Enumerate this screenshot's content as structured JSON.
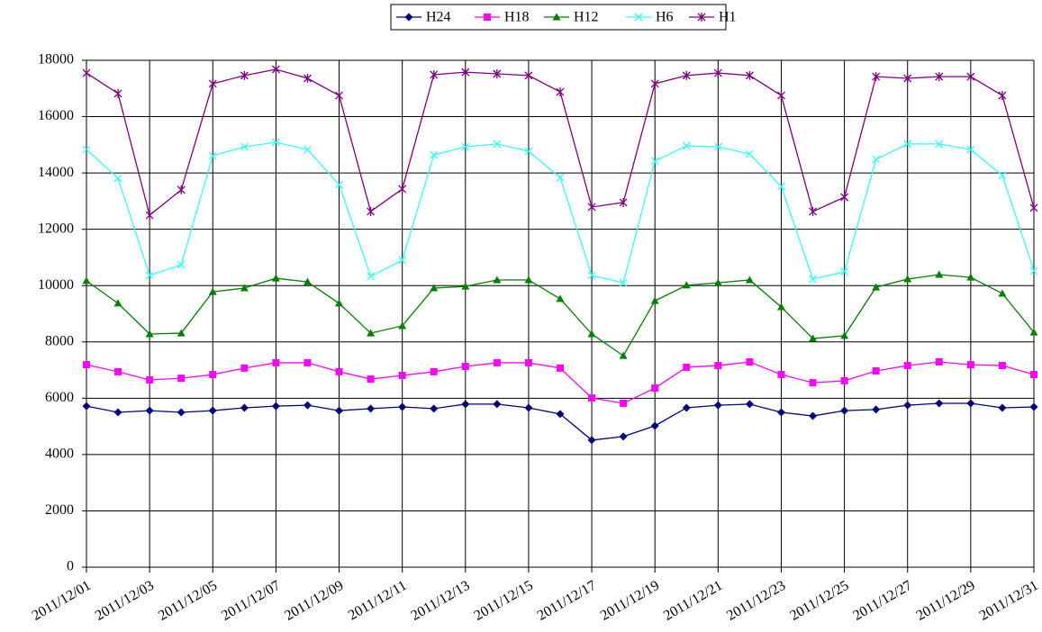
{
  "chart_data": {
    "type": "line",
    "categories": [
      "2011/12/01",
      null,
      "2011/12/03",
      null,
      "2011/12/05",
      null,
      "2011/12/07",
      null,
      "2011/12/09",
      null,
      "2011/12/11",
      null,
      "2011/12/13",
      null,
      "2011/12/15",
      null,
      "2011/12/17",
      null,
      "2011/12/19",
      null,
      "2011/12/21",
      null,
      "2011/12/23",
      null,
      "2011/12/25",
      null,
      "2011/12/27",
      null,
      "2011/12/29",
      null,
      "2011/12/31"
    ],
    "series": [
      {
        "name": "H24",
        "color": "#000080",
        "marker": "diamond",
        "values": [
          5720,
          5500,
          5560,
          5500,
          5560,
          5660,
          5720,
          5750,
          5560,
          5630,
          5690,
          5630,
          5790,
          5790,
          5660,
          5440,
          4510,
          4640,
          5020,
          5660,
          5750,
          5790,
          5500,
          5370,
          5560,
          5600,
          5750,
          5820,
          5820,
          5660,
          5690
        ]
      },
      {
        "name": "H18",
        "color": "#ff00ff",
        "marker": "square",
        "values": [
          7190,
          6940,
          6650,
          6710,
          6840,
          7070,
          7260,
          7260,
          6940,
          6680,
          6810,
          6940,
          7130,
          7260,
          7260,
          7070,
          6010,
          5820,
          6360,
          7100,
          7160,
          7290,
          6840,
          6550,
          6620,
          6970,
          7160,
          7290,
          7190,
          7160,
          6840
        ]
      },
      {
        "name": "H12",
        "color": "#008000",
        "marker": "triangle",
        "values": [
          10170,
          9370,
          8280,
          8310,
          9780,
          9910,
          10260,
          10130,
          9370,
          8310,
          8570,
          9910,
          9970,
          10200,
          10200,
          9530,
          8280,
          7510,
          9460,
          10010,
          10100,
          10200,
          9240,
          8120,
          8220,
          9940,
          10230,
          10390,
          10290,
          9720,
          8340
        ]
      },
      {
        "name": "H6",
        "color": "#33ffff",
        "marker": "x",
        "values": [
          14830,
          13810,
          10360,
          10740,
          14610,
          14930,
          15090,
          14830,
          13590,
          10330,
          10900,
          14640,
          14930,
          15030,
          14770,
          13840,
          10360,
          10100,
          14420,
          14960,
          14930,
          14670,
          13520,
          10230,
          10490,
          14480,
          15030,
          15030,
          14830,
          13910,
          10520
        ]
      },
      {
        "name": "H1",
        "color": "#800080",
        "marker": "star",
        "values": [
          17550,
          16820,
          12500,
          13400,
          17170,
          17460,
          17680,
          17360,
          16750,
          12630,
          13430,
          17490,
          17580,
          17520,
          17460,
          16880,
          12790,
          12950,
          17170,
          17460,
          17550,
          17460,
          16750,
          12630,
          13140,
          17420,
          17360,
          17420,
          17420,
          16750,
          12760
        ]
      }
    ],
    "ylim": [
      0,
      18000
    ],
    "yticks": [
      0,
      2000,
      4000,
      6000,
      8000,
      10000,
      12000,
      14000,
      16000,
      18000
    ],
    "grid": true,
    "legend": "top"
  }
}
